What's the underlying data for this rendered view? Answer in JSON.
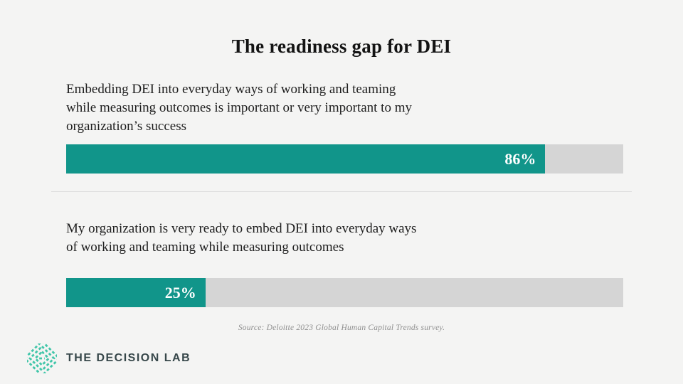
{
  "page": {
    "background_color": "#f4f4f3"
  },
  "chart_data": {
    "type": "bar",
    "orientation": "horizontal",
    "title": "The readiness gap for DEI",
    "categories": [
      "Embedding DEI into everyday ways of working and teaming while measuring outcomes is important or very important to my organization’s success",
      "My organization is very ready to embed DEI into everyday ways of working and teaming while measuring outcomes"
    ],
    "values": [
      86,
      25
    ],
    "value_labels": [
      "86%",
      "25%"
    ],
    "xlim": [
      0,
      100
    ],
    "grid": false,
    "legend": false,
    "bar_color": "#11958a",
    "track_color": "#d5d5d5",
    "source": "Source: Deloitte 2023 Global Human Capital Trends survey."
  },
  "footer": {
    "logo_text": "THE DECISION LAB",
    "logo_icon": "decision-lab-dashed-diamond-mark",
    "logo_icon_color": "#41c6a9",
    "logo_text_color": "#37474a"
  }
}
